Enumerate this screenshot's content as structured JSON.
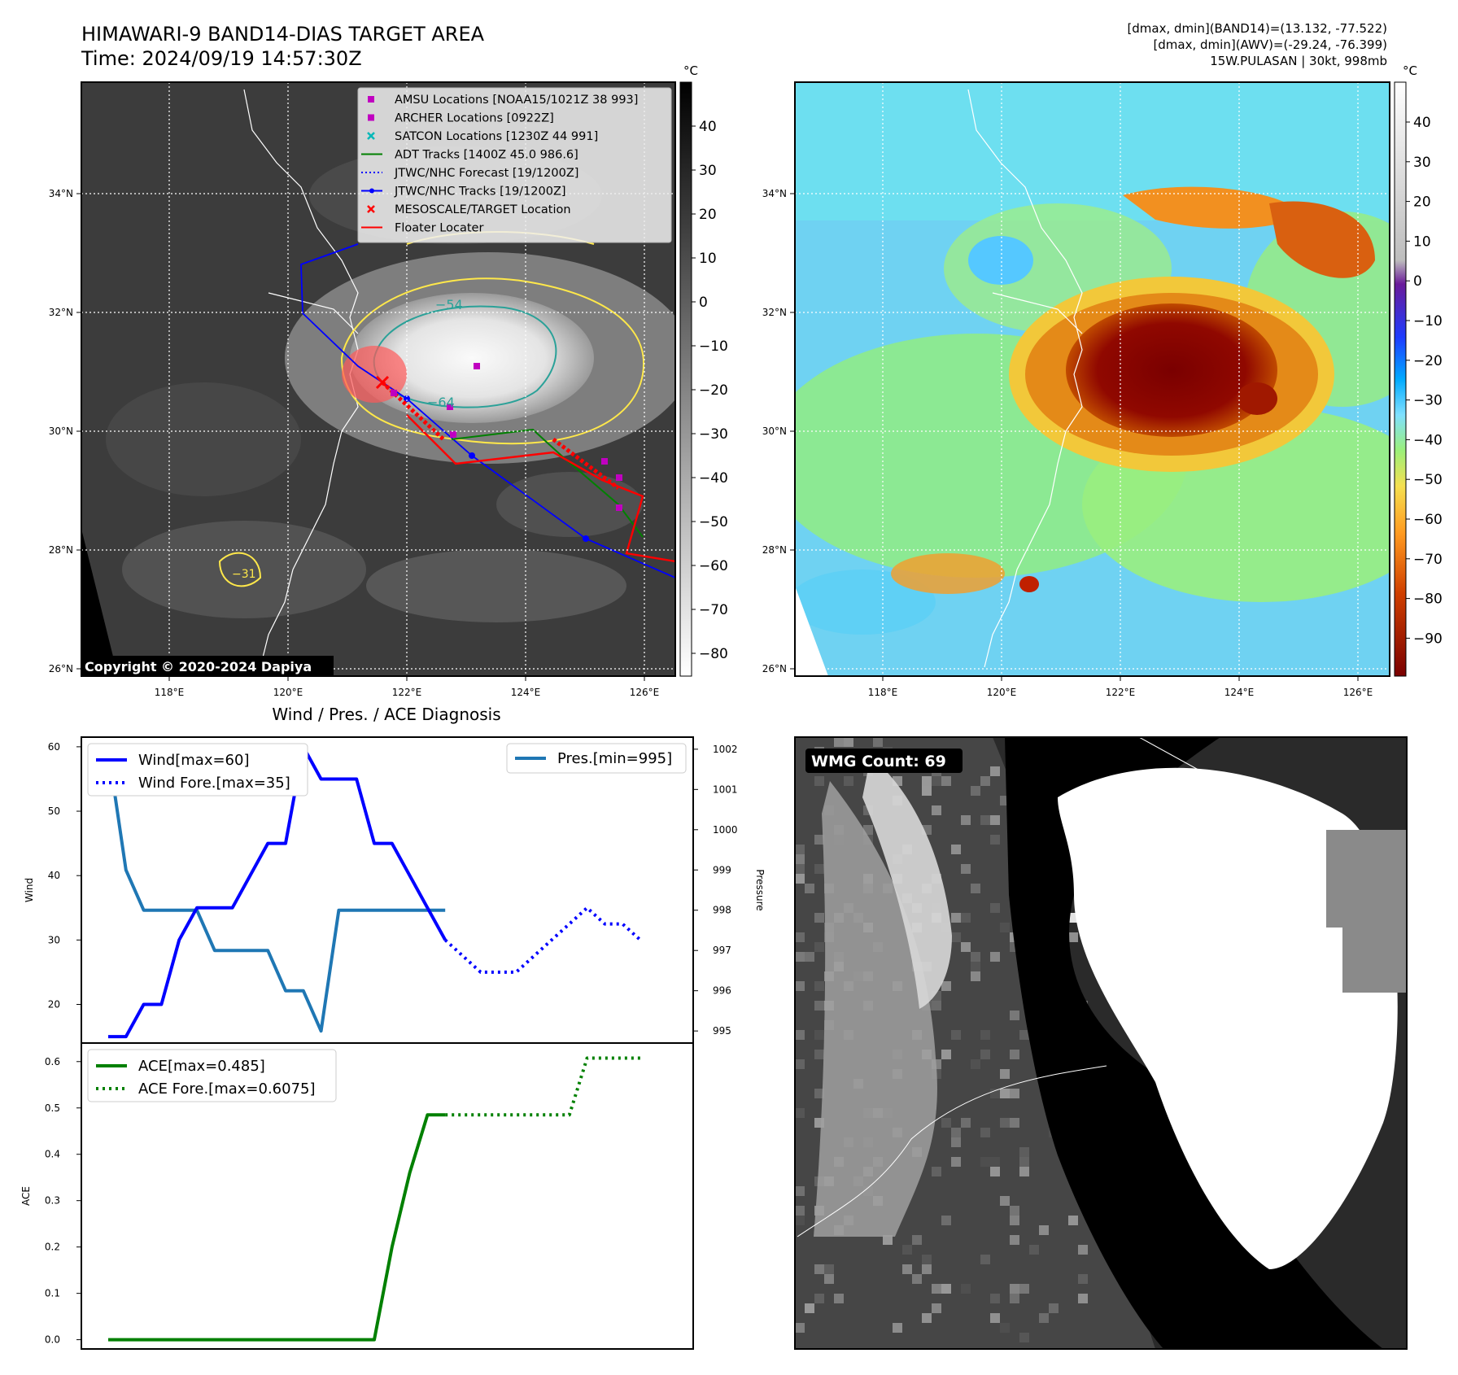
{
  "header": {
    "title_line1": "HIMAWARI-9 BAND14-DIAS TARGET AREA",
    "title_line2": "Time: 2024/09/19 14:57:30Z",
    "stats_line1": "[dmax, dmin](BAND14)=(13.132, -77.522)",
    "stats_line2": "[dmax, dmin](AWV)=(-29.24, -76.399)",
    "stats_line3": "15W.PULASAN | 30kt, 998mb"
  },
  "map": {
    "lon_labels": [
      "118°E",
      "120°E",
      "122°E",
      "124°E",
      "126°E"
    ],
    "lat_labels": [
      "34°N",
      "32°N",
      "30°N",
      "28°N",
      "26°N"
    ],
    "copyright": "Copyright © 2020-2024 Dapiya",
    "contour_labels": [
      "−54",
      "−64",
      "−31"
    ],
    "legend": [
      {
        "label": "AMSU Locations [NOAA15/1021Z 38 993]",
        "color": "#c000c0",
        "style": "square"
      },
      {
        "label": "ARCHER Locations [0922Z]",
        "color": "#c000c0",
        "style": "square"
      },
      {
        "label": "SATCON Locations [1230Z 44 991]",
        "color": "#00b8b8",
        "style": "x"
      },
      {
        "label": "ADT Tracks [1400Z 45.0 986.6]",
        "color": "#008000",
        "style": "line"
      },
      {
        "label": "JTWC/NHC Forecast [19/1200Z]",
        "color": "#0000ff",
        "style": "dotted"
      },
      {
        "label": "JTWC/NHC Tracks [19/1200Z]",
        "color": "#0000ff",
        "style": "linedot"
      },
      {
        "label": "MESOSCALE/TARGET Location",
        "color": "#ff0000",
        "style": "x"
      },
      {
        "label": "Floater Locater",
        "color": "#ff0000",
        "style": "line"
      }
    ]
  },
  "colorbars": {
    "unit": "°C",
    "left_ticks": [
      "40",
      "30",
      "20",
      "10",
      "0",
      "−10",
      "−20",
      "−30",
      "−40",
      "−50",
      "−60",
      "−70",
      "−80"
    ],
    "right_ticks": [
      "40",
      "30",
      "20",
      "10",
      "0",
      "−10",
      "−20",
      "−30",
      "−40",
      "−50",
      "−60",
      "−70",
      "−80",
      "−90"
    ]
  },
  "wmg": {
    "label": "WMG Count: 69"
  },
  "chart_data": [
    {
      "type": "line",
      "title": "Wind / Pres. / ACE Diagnosis",
      "ylabel": "Wind",
      "y2label": "Pressure",
      "ylim": [
        14,
        61.5
      ],
      "y2lim": [
        994.7,
        1002.3
      ],
      "yticks": [
        "20",
        "30",
        "40",
        "50",
        "60"
      ],
      "y2ticks": [
        "995",
        "996",
        "997",
        "998",
        "999",
        "1000",
        "1001",
        "1002"
      ],
      "series": [
        {
          "name": "Wind[max=60]",
          "x": [
            0,
            1,
            2,
            3,
            4,
            5,
            6,
            7,
            8,
            9,
            10,
            11,
            12,
            13,
            14,
            15,
            16,
            17,
            18,
            19
          ],
          "values": [
            15,
            15,
            20,
            20,
            30,
            35,
            35,
            35,
            40,
            45,
            45,
            60,
            55,
            55,
            55,
            45,
            45,
            40,
            35,
            30
          ]
        },
        {
          "name": "Wind Fore.[max=35]",
          "x": [
            19,
            20,
            21,
            22,
            23,
            24,
            25,
            26,
            27,
            28,
            29,
            30
          ],
          "values": [
            30,
            27.5,
            25,
            25,
            25,
            27.5,
            30,
            32.5,
            35,
            32.5,
            32.5,
            30
          ]
        },
        {
          "name": "Pres.[min=995]",
          "axis": "right",
          "x": [
            0,
            1,
            2,
            3,
            4,
            5,
            6,
            7,
            8,
            9,
            10,
            11,
            12,
            13,
            14,
            15,
            16,
            17,
            18,
            19
          ],
          "values": [
            1002,
            999,
            998,
            998,
            998,
            998,
            997,
            997,
            997,
            997,
            996,
            996,
            995,
            998,
            998,
            998,
            998,
            998,
            998,
            998
          ]
        }
      ]
    },
    {
      "type": "line",
      "ylabel": "ACE",
      "ylim": [
        -0.02,
        0.64
      ],
      "yticks": [
        "0.0",
        "0.1",
        "0.2",
        "0.3",
        "0.4",
        "0.5",
        "0.6"
      ],
      "series": [
        {
          "name": "ACE[max=0.485]",
          "x": [
            0,
            15,
            16,
            17,
            18,
            19
          ],
          "values": [
            0,
            0,
            0.2,
            0.36,
            0.485,
            0.485
          ]
        },
        {
          "name": "ACE Fore.[max=0.6075]",
          "x": [
            19,
            26,
            27,
            28,
            29,
            30
          ],
          "values": [
            0.485,
            0.485,
            0.6075,
            0.6075,
            0.6075,
            0.6075
          ]
        }
      ]
    }
  ]
}
